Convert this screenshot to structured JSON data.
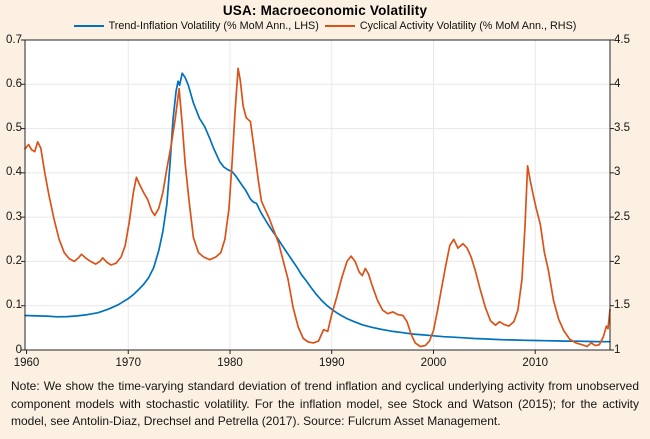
{
  "title": "USA: Macroeconomic Volatility",
  "legend": [
    {
      "label": "Trend-Inflation Volatility (% MoM Ann., LHS)",
      "color": "#0072BD"
    },
    {
      "label": "Cyclical Activity Volatility (% MoM Ann., RHS)",
      "color": "#D95319"
    }
  ],
  "note": "Note: We show the time-varying standard deviation of trend inflation and cyclical underlying activity from unobserved component models with stochastic volatility. For the inflation model, see Stock and Watson (2015); for the activity model, see Antolin-Diaz, Drechsel and Petrella (2017). Source: Fulcrum Asset Management.",
  "colors": {
    "background": "#fbf0e1",
    "plot_background": "#ffffff",
    "grid": "#e8e8e8",
    "axis": "#262626",
    "blue_series": "#0072BD",
    "orange_series": "#D95319"
  },
  "chart_data": {
    "type": "line",
    "title": "USA: Macroeconomic Volatility",
    "grid": true,
    "legend_position": "top",
    "x_axis": {
      "range": [
        1959.85,
        2017.35
      ],
      "ticks": [
        {
          "v": 1960,
          "label": "1960"
        },
        {
          "v": 1970,
          "label": "1970"
        },
        {
          "v": 1980,
          "label": "1980"
        },
        {
          "v": 1990,
          "label": "1990"
        },
        {
          "v": 2000,
          "label": "2000"
        },
        {
          "v": 2010,
          "label": "2010"
        }
      ]
    },
    "y_axis_left": {
      "range": [
        0,
        0.7
      ],
      "ticks": [
        {
          "v": 0,
          "label": "0"
        },
        {
          "v": 0.1,
          "label": "0.1"
        },
        {
          "v": 0.2,
          "label": "0.2"
        },
        {
          "v": 0.3,
          "label": "0.3"
        },
        {
          "v": 0.4,
          "label": "0.4"
        },
        {
          "v": 0.5,
          "label": "0.5"
        },
        {
          "v": 0.6,
          "label": "0.6"
        },
        {
          "v": 0.7,
          "label": "0.7"
        }
      ]
    },
    "y_axis_right": {
      "range": [
        1,
        4.5
      ],
      "ticks": [
        {
          "v": 1,
          "label": "1"
        },
        {
          "v": 1.5,
          "label": "1.5"
        },
        {
          "v": 2,
          "label": "2"
        },
        {
          "v": 2.5,
          "label": "2.5"
        },
        {
          "v": 3,
          "label": "3"
        },
        {
          "v": 3.5,
          "label": "3.5"
        },
        {
          "v": 4,
          "label": "4"
        },
        {
          "v": 4.5,
          "label": "4.5"
        }
      ]
    },
    "series": [
      {
        "name": "Trend-Inflation Volatility (% MoM Ann., LHS)",
        "axis": "left",
        "color": "#0072BD",
        "points": [
          [
            1959.85,
            0.078
          ],
          [
            1961,
            0.077
          ],
          [
            1962,
            0.0765
          ],
          [
            1963,
            0.075
          ],
          [
            1964,
            0.0755
          ],
          [
            1965,
            0.077
          ],
          [
            1966,
            0.08
          ],
          [
            1967,
            0.084
          ],
          [
            1968,
            0.092
          ],
          [
            1969,
            0.102
          ],
          [
            1970,
            0.116
          ],
          [
            1970.5,
            0.125
          ],
          [
            1971,
            0.136
          ],
          [
            1971.5,
            0.148
          ],
          [
            1972,
            0.163
          ],
          [
            1972.5,
            0.186
          ],
          [
            1973,
            0.225
          ],
          [
            1973.4,
            0.268
          ],
          [
            1973.8,
            0.33
          ],
          [
            1974.1,
            0.42
          ],
          [
            1974.4,
            0.52
          ],
          [
            1974.7,
            0.585
          ],
          [
            1974.9,
            0.607
          ],
          [
            1975.05,
            0.598
          ],
          [
            1975.3,
            0.625
          ],
          [
            1975.6,
            0.615
          ],
          [
            1975.9,
            0.598
          ],
          [
            1976.4,
            0.558
          ],
          [
            1977,
            0.523
          ],
          [
            1977.5,
            0.505
          ],
          [
            1978,
            0.478
          ],
          [
            1978.4,
            0.455
          ],
          [
            1979,
            0.425
          ],
          [
            1979.4,
            0.413
          ],
          [
            1979.8,
            0.407
          ],
          [
            1980.2,
            0.403
          ],
          [
            1980.6,
            0.392
          ],
          [
            1981,
            0.378
          ],
          [
            1981.5,
            0.362
          ],
          [
            1982,
            0.341
          ],
          [
            1982.3,
            0.334
          ],
          [
            1982.6,
            0.331
          ],
          [
            1983,
            0.312
          ],
          [
            1983.6,
            0.289
          ],
          [
            1984.1,
            0.271
          ],
          [
            1984.6,
            0.255
          ],
          [
            1985.1,
            0.237
          ],
          [
            1985.6,
            0.22
          ],
          [
            1986.1,
            0.203
          ],
          [
            1986.6,
            0.186
          ],
          [
            1987,
            0.171
          ],
          [
            1987.5,
            0.156
          ],
          [
            1988,
            0.14
          ],
          [
            1988.5,
            0.125
          ],
          [
            1989,
            0.112
          ],
          [
            1989.5,
            0.101
          ],
          [
            1990,
            0.092
          ],
          [
            1990.5,
            0.084
          ],
          [
            1991,
            0.077
          ],
          [
            1991.5,
            0.071
          ],
          [
            1992,
            0.066
          ],
          [
            1993,
            0.057
          ],
          [
            1994,
            0.051
          ],
          [
            1995,
            0.046
          ],
          [
            1996,
            0.042
          ],
          [
            1997,
            0.039
          ],
          [
            1998,
            0.036
          ],
          [
            1999,
            0.034
          ],
          [
            2000,
            0.032
          ],
          [
            2001,
            0.03
          ],
          [
            2002,
            0.029
          ],
          [
            2003,
            0.0275
          ],
          [
            2004,
            0.026
          ],
          [
            2005,
            0.025
          ],
          [
            2006,
            0.024
          ],
          [
            2007,
            0.023
          ],
          [
            2008,
            0.0225
          ],
          [
            2009,
            0.022
          ],
          [
            2010,
            0.0215
          ],
          [
            2011,
            0.021
          ],
          [
            2012,
            0.0205
          ],
          [
            2013,
            0.02
          ],
          [
            2014,
            0.0198
          ],
          [
            2015,
            0.0195
          ],
          [
            2016,
            0.019
          ],
          [
            2017.35,
            0.0188
          ]
        ]
      },
      {
        "name": "Cyclical Activity Volatility (% MoM Ann., RHS)",
        "axis": "right",
        "color": "#D95319",
        "points": [
          [
            1959.85,
            3.27
          ],
          [
            1960.2,
            3.32
          ],
          [
            1960.5,
            3.26
          ],
          [
            1960.8,
            3.24
          ],
          [
            1961.1,
            3.35
          ],
          [
            1961.4,
            3.28
          ],
          [
            1961.8,
            3.0
          ],
          [
            1962.2,
            2.75
          ],
          [
            1962.7,
            2.48
          ],
          [
            1963.2,
            2.25
          ],
          [
            1963.7,
            2.1
          ],
          [
            1964.2,
            2.03
          ],
          [
            1964.7,
            2.0
          ],
          [
            1965.1,
            2.04
          ],
          [
            1965.4,
            2.08
          ],
          [
            1965.8,
            2.04
          ],
          [
            1966.3,
            2.0
          ],
          [
            1966.8,
            1.97
          ],
          [
            1967.2,
            2.0
          ],
          [
            1967.5,
            2.04
          ],
          [
            1967.9,
            1.99
          ],
          [
            1968.3,
            1.96
          ],
          [
            1968.8,
            1.98
          ],
          [
            1969.3,
            2.05
          ],
          [
            1969.7,
            2.18
          ],
          [
            1970.1,
            2.45
          ],
          [
            1970.5,
            2.78
          ],
          [
            1970.8,
            2.95
          ],
          [
            1971.1,
            2.87
          ],
          [
            1971.5,
            2.78
          ],
          [
            1971.9,
            2.7
          ],
          [
            1972.3,
            2.57
          ],
          [
            1972.6,
            2.52
          ],
          [
            1973,
            2.6
          ],
          [
            1973.4,
            2.78
          ],
          [
            1973.8,
            3.05
          ],
          [
            1974.2,
            3.3
          ],
          [
            1974.6,
            3.6
          ],
          [
            1975,
            3.95
          ],
          [
            1975.3,
            3.55
          ],
          [
            1975.6,
            3.1
          ],
          [
            1976,
            2.66
          ],
          [
            1976.4,
            2.27
          ],
          [
            1976.9,
            2.1
          ],
          [
            1977.4,
            2.05
          ],
          [
            1978,
            2.02
          ],
          [
            1978.6,
            2.05
          ],
          [
            1979.1,
            2.1
          ],
          [
            1979.5,
            2.25
          ],
          [
            1979.9,
            2.6
          ],
          [
            1980.2,
            3.1
          ],
          [
            1980.5,
            3.7
          ],
          [
            1980.8,
            4.18
          ],
          [
            1981,
            4.05
          ],
          [
            1981.3,
            3.75
          ],
          [
            1981.6,
            3.62
          ],
          [
            1982,
            3.58
          ],
          [
            1982.4,
            3.25
          ],
          [
            1982.8,
            2.9
          ],
          [
            1983.1,
            2.68
          ],
          [
            1983.4,
            2.6
          ],
          [
            1983.8,
            2.5
          ],
          [
            1984.3,
            2.35
          ],
          [
            1984.8,
            2.2
          ],
          [
            1985.2,
            2.02
          ],
          [
            1985.7,
            1.8
          ],
          [
            1986.2,
            1.48
          ],
          [
            1986.7,
            1.26
          ],
          [
            1987.2,
            1.13
          ],
          [
            1987.7,
            1.09
          ],
          [
            1988.2,
            1.08
          ],
          [
            1988.7,
            1.1
          ],
          [
            1989.2,
            1.23
          ],
          [
            1989.6,
            1.21
          ],
          [
            1990,
            1.4
          ],
          [
            1990.5,
            1.6
          ],
          [
            1991,
            1.82
          ],
          [
            1991.5,
            2.0
          ],
          [
            1991.9,
            2.06
          ],
          [
            1992.3,
            2.0
          ],
          [
            1992.7,
            1.88
          ],
          [
            1993,
            1.84
          ],
          [
            1993.3,
            1.92
          ],
          [
            1993.6,
            1.86
          ],
          [
            1994,
            1.72
          ],
          [
            1994.5,
            1.56
          ],
          [
            1995,
            1.45
          ],
          [
            1995.5,
            1.41
          ],
          [
            1996,
            1.43
          ],
          [
            1996.5,
            1.4
          ],
          [
            1997,
            1.39
          ],
          [
            1997.4,
            1.32
          ],
          [
            1997.8,
            1.18
          ],
          [
            1998.2,
            1.08
          ],
          [
            1998.7,
            1.04
          ],
          [
            1999.2,
            1.05
          ],
          [
            1999.6,
            1.1
          ],
          [
            2000,
            1.22
          ],
          [
            2000.4,
            1.45
          ],
          [
            2000.8,
            1.7
          ],
          [
            2001.2,
            1.95
          ],
          [
            2001.6,
            2.18
          ],
          [
            2002,
            2.25
          ],
          [
            2002.4,
            2.15
          ],
          [
            2002.9,
            2.2
          ],
          [
            2003.3,
            2.15
          ],
          [
            2003.7,
            2.05
          ],
          [
            2004.1,
            1.9
          ],
          [
            2004.6,
            1.68
          ],
          [
            2005.1,
            1.48
          ],
          [
            2005.6,
            1.33
          ],
          [
            2006.1,
            1.28
          ],
          [
            2006.5,
            1.32
          ],
          [
            2006.9,
            1.29
          ],
          [
            2007.4,
            1.27
          ],
          [
            2007.9,
            1.32
          ],
          [
            2008.3,
            1.45
          ],
          [
            2008.7,
            1.8
          ],
          [
            2009,
            2.4
          ],
          [
            2009.25,
            3.08
          ],
          [
            2009.5,
            2.92
          ],
          [
            2009.8,
            2.75
          ],
          [
            2010.1,
            2.6
          ],
          [
            2010.5,
            2.42
          ],
          [
            2010.9,
            2.1
          ],
          [
            2011.3,
            1.9
          ],
          [
            2011.8,
            1.56
          ],
          [
            2012.3,
            1.35
          ],
          [
            2012.8,
            1.22
          ],
          [
            2013.4,
            1.12
          ],
          [
            2014,
            1.08
          ],
          [
            2014.6,
            1.06
          ],
          [
            2015.1,
            1.04
          ],
          [
            2015.5,
            1.08
          ],
          [
            2015.9,
            1.05
          ],
          [
            2016.3,
            1.06
          ],
          [
            2016.7,
            1.15
          ],
          [
            2017,
            1.27
          ],
          [
            2017.15,
            1.24
          ],
          [
            2017.35,
            1.46
          ]
        ]
      }
    ]
  }
}
